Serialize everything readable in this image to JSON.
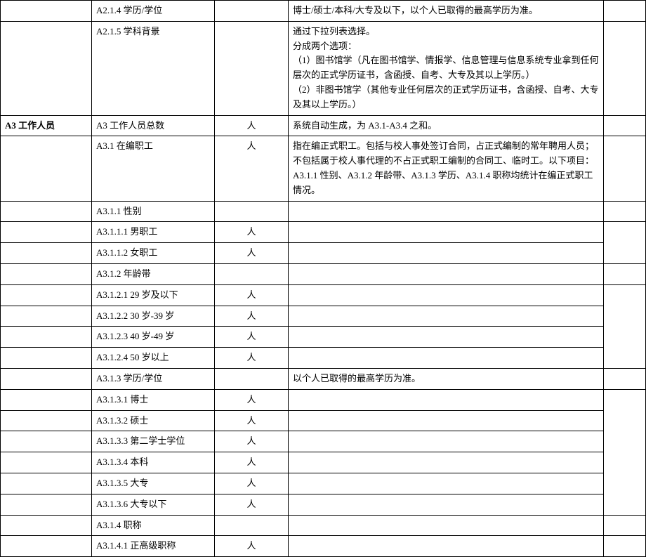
{
  "rows": [
    {
      "c1": "",
      "c2": "A2.1.4 学历/学位",
      "c3": "",
      "c4": "博士/硕士/本科/大专及以下，以个人已取得的最高学历为准。",
      "c5": ""
    },
    {
      "c1": "",
      "c2": "A2.1.5 学科背景",
      "c3": "",
      "c4": "通过下拉列表选择。\n分成两个选项：\n（1）图书馆学（凡在图书馆学、情报学、信息管理与信息系统专业拿到任何层次的正式学历证书，含函授、自考、大专及其以上学历。）\n（2）非图书馆学（其他专业任何层次的正式学历证书，含函授、自考、大专及其以上学历。）",
      "c5": ""
    },
    {
      "c1": "A3  工作人员",
      "c1bold": true,
      "c2": "A3  工作人员总数",
      "c3": "人",
      "c4": "系统自动生成，为 A3.1-A3.4 之和。",
      "c5": ""
    },
    {
      "c1": "",
      "c2": "A3.1 在编职工",
      "c3": "人",
      "c4": "指在编正式职工。包括与校人事处签订合同，占正式编制的常年聘用人员；不包括属于校人事代理的不占正式职工编制的合同工、临时工。以下项目：A3.1.1 性别、A3.1.2 年龄带、A3.1.3 学历、A3.1.4 职称均统计在编正式职工情况。",
      "c5": ""
    },
    {
      "c1": "",
      "c2": "A3.1.1 性别",
      "c3": "",
      "c4": "",
      "c5": ""
    },
    {
      "c1": "",
      "c2": "A3.1.1.1 男职工",
      "c3": "人",
      "c4": "",
      "c5": null
    },
    {
      "c1": "",
      "c2": "A3.1.1.2 女职工",
      "c3": "人",
      "c4": "",
      "c5": null
    },
    {
      "c1": "",
      "c2": "A3.1.2 年龄带",
      "c3": "",
      "c4": "",
      "c5": ""
    },
    {
      "c1": "",
      "c2": "A3.1.2.1 29 岁及以下",
      "c3": "人",
      "c4": "",
      "c5": null
    },
    {
      "c1": "",
      "c2": "A3.1.2.2 30 岁-39 岁",
      "c3": "人",
      "c4": "",
      "c5": null
    },
    {
      "c1": "",
      "c2": "A3.1.2.3 40 岁-49 岁",
      "c3": "人",
      "c4": "",
      "c5": null
    },
    {
      "c1": "",
      "c2": "A3.1.2.4 50 岁以上",
      "c3": "人",
      "c4": "",
      "c5": null
    },
    {
      "c1": "",
      "c2": "A3.1.3 学历/学位",
      "c3": "",
      "c4": "以个人已取得的最高学历为准。",
      "c5": ""
    },
    {
      "c1": "",
      "c2": "A3.1.3.1 博士",
      "c3": "人",
      "c4": "",
      "c5": null
    },
    {
      "c1": "",
      "c2": "A3.1.3.2 硕士",
      "c3": "人",
      "c4": "",
      "c5": null
    },
    {
      "c1": "",
      "c2": "A3.1.3.3 第二学士学位",
      "c3": "人",
      "c4": "",
      "c5": null
    },
    {
      "c1": "",
      "c2": "A3.1.3.4 本科",
      "c3": "人",
      "c4": "",
      "c5": null
    },
    {
      "c1": "",
      "c2": "A3.1.3.5 大专",
      "c3": "人",
      "c4": "",
      "c5": null
    },
    {
      "c1": "",
      "c2": "A3.1.3.6 大专以下",
      "c3": "人",
      "c4": "",
      "c5": null
    },
    {
      "c1": "",
      "c2": "A3.1.4 职称",
      "c3": "",
      "c4": "",
      "c5": ""
    },
    {
      "c1": "",
      "c2": "A3.1.4.1 正高级职称",
      "c3": "人",
      "c4": "",
      "c5": null
    }
  ],
  "mergeGroups": [
    {
      "start": 5,
      "span": 2
    },
    {
      "start": 8,
      "span": 4
    },
    {
      "start": 13,
      "span": 6
    },
    {
      "start": 20,
      "span": 1
    }
  ]
}
